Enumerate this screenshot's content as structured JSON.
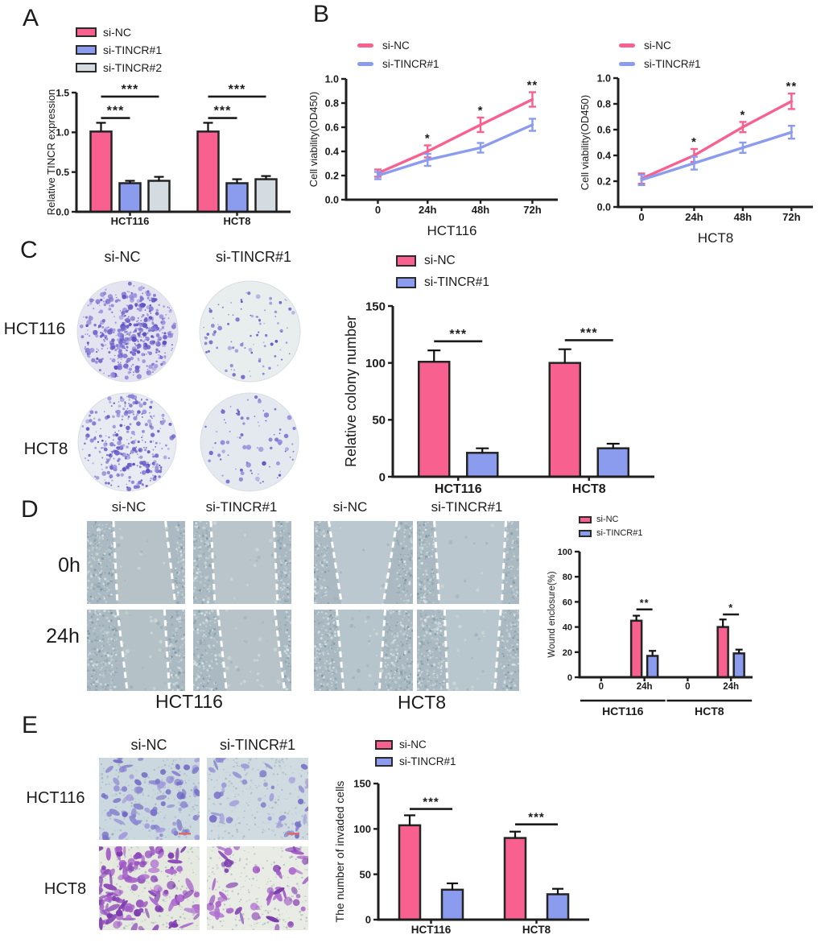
{
  "figure": {
    "panels": {
      "A": {
        "label": "A"
      },
      "B": {
        "label": "B"
      },
      "C": {
        "label": "C",
        "col_labels": [
          "si-NC",
          "si-TINCR#1"
        ],
        "row_labels": [
          "HCT116",
          "HCT8"
        ]
      },
      "D": {
        "label": "D",
        "col_labels": [
          "si-NC",
          "si-TINCR#1",
          "si-NC",
          "si-TINCR#1"
        ],
        "row_labels": [
          "0h",
          "24h"
        ],
        "group_labels": [
          "HCT116",
          "HCT8"
        ]
      },
      "E": {
        "label": "E",
        "col_labels": [
          "si-NC",
          "si-TINCR#1"
        ],
        "row_labels": [
          "HCT116",
          "HCT8"
        ]
      }
    }
  },
  "colors": {
    "si_nc": "#F8618F",
    "si_tincr1": "#8B9BEE",
    "si_tincr2": "#D4DBE1",
    "axis": "#1E1E1E"
  },
  "chart_data": [
    {
      "id": "A",
      "type": "bar",
      "ylabel": "Relative TINCR expression",
      "ylim": [
        0,
        1.5
      ],
      "yticks": [
        0,
        0.5,
        1,
        1.5
      ],
      "ytick_labels": [
        "0.0",
        "0.5",
        "1.0",
        "1.5"
      ],
      "categories": [
        "HCT116",
        "HCT8"
      ],
      "series": [
        {
          "name": "si-NC",
          "color": "si_nc",
          "values": [
            1.01,
            1.01
          ],
          "errors": [
            0.11,
            0.11
          ]
        },
        {
          "name": "si-TINCR#1",
          "color": "si_tincr1",
          "values": [
            0.36,
            0.36
          ],
          "errors": [
            0.03,
            0.05
          ]
        },
        {
          "name": "si-TINCR#2",
          "color": "si_tincr2",
          "values": [
            0.39,
            0.41
          ],
          "errors": [
            0.05,
            0.04
          ]
        }
      ],
      "significance": [
        {
          "cat": 0,
          "from": 0,
          "to": 1,
          "y": 1.18,
          "label": "***"
        },
        {
          "cat": 0,
          "from": 0,
          "to": 2,
          "y": 1.45,
          "label": "***"
        },
        {
          "cat": 1,
          "from": 0,
          "to": 1,
          "y": 1.18,
          "label": "***"
        },
        {
          "cat": 1,
          "from": 0,
          "to": 2,
          "y": 1.45,
          "label": "***"
        }
      ],
      "legend_position": "top"
    },
    {
      "id": "B1",
      "type": "line",
      "title_below": "HCT116",
      "ylabel": "Cell viability(OD450)",
      "ylim": [
        0,
        1
      ],
      "yticks": [
        0,
        0.2,
        0.4,
        0.6,
        0.8,
        1
      ],
      "ytick_labels": [
        "0.0",
        "0.2",
        "0.4",
        "0.6",
        "0.8",
        "1.0"
      ],
      "x_labels": [
        "0",
        "24h",
        "48h",
        "72h"
      ],
      "series": [
        {
          "name": "si-NC",
          "color": "si_nc",
          "values": [
            0.22,
            0.4,
            0.62,
            0.83
          ],
          "errors": [
            0.03,
            0.05,
            0.06,
            0.06
          ]
        },
        {
          "name": "si-TINCR#1",
          "color": "si_tincr1",
          "values": [
            0.2,
            0.33,
            0.43,
            0.62
          ],
          "errors": [
            0.03,
            0.05,
            0.04,
            0.05
          ]
        }
      ],
      "annotations": [
        {
          "x": 1,
          "label": "*"
        },
        {
          "x": 2,
          "label": "*"
        },
        {
          "x": 3,
          "label": "**"
        }
      ],
      "legend_position": "top"
    },
    {
      "id": "B2",
      "type": "line",
      "title_below": "HCT8",
      "ylabel": "Cell viability(OD450)",
      "ylim": [
        0,
        1
      ],
      "yticks": [
        0,
        0.2,
        0.4,
        0.6,
        0.8,
        1
      ],
      "ytick_labels": [
        "0.0",
        "0.2",
        "0.4",
        "0.6",
        "0.8",
        "1.0"
      ],
      "x_labels": [
        "0",
        "24h",
        "48h",
        "72h"
      ],
      "series": [
        {
          "name": "si-NC",
          "color": "si_nc",
          "values": [
            0.22,
            0.4,
            0.62,
            0.82
          ],
          "errors": [
            0.04,
            0.05,
            0.04,
            0.06
          ]
        },
        {
          "name": "si-TINCR#1",
          "color": "si_tincr1",
          "values": [
            0.21,
            0.34,
            0.46,
            0.58
          ],
          "errors": [
            0.04,
            0.05,
            0.04,
            0.05
          ]
        }
      ],
      "annotations": [
        {
          "x": 1,
          "label": "*"
        },
        {
          "x": 2,
          "label": "*"
        },
        {
          "x": 3,
          "label": "**"
        }
      ],
      "legend_position": "top"
    },
    {
      "id": "C",
      "type": "bar",
      "ylabel": "Relative colony number",
      "ylim": [
        0,
        150
      ],
      "yticks": [
        0,
        50,
        100,
        150
      ],
      "ytick_labels": [
        "0",
        "50",
        "100",
        "150"
      ],
      "categories": [
        "HCT116",
        "HCT8"
      ],
      "series": [
        {
          "name": "si-NC",
          "color": "si_nc",
          "values": [
            101,
            100
          ],
          "errors": [
            10,
            12
          ]
        },
        {
          "name": "si-TINCR#1",
          "color": "si_tincr1",
          "values": [
            21,
            25
          ],
          "errors": [
            4,
            4
          ]
        }
      ],
      "significance": [
        {
          "cat": 0,
          "from": 0,
          "to": 1,
          "y": 119,
          "label": "***"
        },
        {
          "cat": 1,
          "from": 0,
          "to": 1,
          "y": 120,
          "label": "***"
        }
      ],
      "legend_position": "top"
    },
    {
      "id": "D",
      "type": "bar",
      "ylabel": "Wound enclosure(%)",
      "ylim": [
        0,
        100
      ],
      "yticks": [
        0,
        20,
        40,
        60,
        80,
        100
      ],
      "ytick_labels": [
        "0",
        "20",
        "40",
        "60",
        "80",
        "100"
      ],
      "categories": [
        "0",
        "24h",
        "0",
        "24h"
      ],
      "series": [
        {
          "name": "si-NC",
          "color": "si_nc",
          "values": [
            0,
            45,
            0,
            40
          ],
          "errors": [
            0,
            4,
            0,
            6
          ]
        },
        {
          "name": "si-TINCR#1",
          "color": "si_tincr1",
          "values": [
            0,
            17,
            0,
            19
          ],
          "errors": [
            0,
            4,
            0,
            3
          ]
        }
      ],
      "significance": [
        {
          "cat": 1,
          "from": 0,
          "to": 1,
          "y": 54,
          "label": "**"
        },
        {
          "cat": 3,
          "from": 0,
          "to": 1,
          "y": 50,
          "label": "*"
        }
      ],
      "group_labels": [
        {
          "label": "HCT116",
          "from": 0,
          "to": 1
        },
        {
          "label": "HCT8",
          "from": 2,
          "to": 3
        }
      ],
      "legend_position": "top"
    },
    {
      "id": "E",
      "type": "bar",
      "ylabel": "The number of invaded cells",
      "ylim": [
        0,
        150
      ],
      "yticks": [
        0,
        50,
        100,
        150
      ],
      "ytick_labels": [
        "0",
        "50",
        "100",
        "150"
      ],
      "categories": [
        "HCT116",
        "HCT8"
      ],
      "series": [
        {
          "name": "si-NC",
          "color": "si_nc",
          "values": [
            104,
            90
          ],
          "errors": [
            11,
            7
          ]
        },
        {
          "name": "si-TINCR#1",
          "color": "si_tincr1",
          "values": [
            33,
            28
          ],
          "errors": [
            7,
            6
          ]
        }
      ],
      "significance": [
        {
          "cat": 0,
          "from": 0,
          "to": 1,
          "y": 122,
          "label": "***"
        },
        {
          "cat": 1,
          "from": 0,
          "to": 1,
          "y": 105,
          "label": "***"
        }
      ],
      "legend_position": "top"
    }
  ]
}
